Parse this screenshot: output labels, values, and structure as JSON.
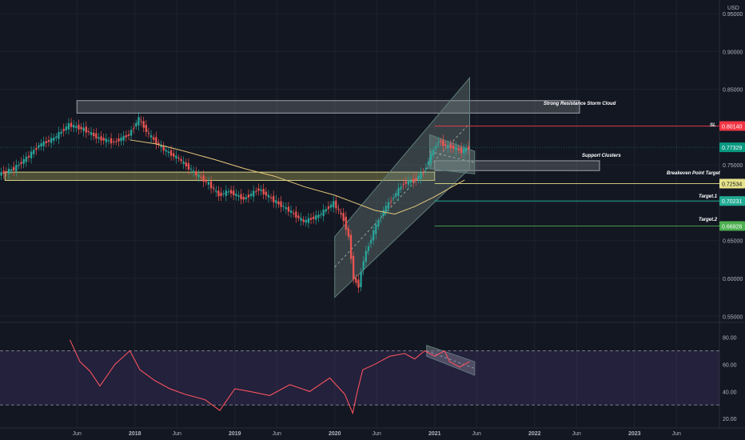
{
  "currency": "USD",
  "price_axis": {
    "labels": [
      "0.95000",
      "0.90000",
      "0.85000",
      "0.80000",
      "0.75000",
      "0.70000",
      "0.65000",
      "0.60000",
      "0.55000"
    ],
    "values": [
      0.95,
      0.9,
      0.85,
      0.8,
      0.75,
      0.7,
      0.65,
      0.6,
      0.55
    ]
  },
  "rsi_axis": {
    "labels": [
      "80.00",
      "60.00",
      "40.00",
      "20.00"
    ],
    "values": [
      80,
      60,
      40,
      20
    ]
  },
  "time_axis": {
    "labels": [
      "Jun",
      "2018",
      "Jun",
      "2019",
      "Jun",
      "2020",
      "Jun",
      "2021",
      "Jun",
      "2022",
      "Jun",
      "2023",
      "Jun"
    ],
    "values": [
      2017.42,
      2018.0,
      2018.42,
      2019.0,
      2019.42,
      2020.0,
      2020.42,
      2021.0,
      2021.42,
      2022.0,
      2022.42,
      2023.0,
      2023.42
    ]
  },
  "price_tags": [
    {
      "id": "sl",
      "text": "0.80140",
      "value": 0.8014,
      "color": "#f23645"
    },
    {
      "id": "last",
      "text": "0.77329",
      "value": 0.77329,
      "color": "#089981"
    },
    {
      "id": "breakeven",
      "text": "0.72534",
      "value": 0.72534,
      "color": "#e6e28a"
    },
    {
      "id": "target1",
      "text": "0.70231",
      "value": 0.70231,
      "color": "#22ab94"
    },
    {
      "id": "target2",
      "text": "0.66928",
      "value": 0.66928,
      "color": "#4caf50"
    }
  ],
  "annotations": {
    "resistance": "Strong Resistance Storm Cloud",
    "support": "Support Clusters",
    "breakeven": "Breakeven Point Target",
    "sl": "SL",
    "target1": "Target.1",
    "target2": "Target.2"
  },
  "zones": [
    {
      "id": "resistance-zone",
      "t0": 2017.42,
      "t1": 2022.45,
      "p0": 0.8185,
      "p1": 0.835,
      "fill": "rgba(255,255,255,0.16)",
      "stroke": "#a0a3ab"
    },
    {
      "id": "support-zone",
      "t0": 2021.0,
      "t1": 2022.65,
      "p0": 0.7425,
      "p1": 0.7555,
      "fill": "rgba(255,255,255,0.16)",
      "stroke": "#a0a3ab"
    },
    {
      "id": "yellow-zone",
      "t0": 2016.7,
      "t1": 2021.0,
      "p0": 0.7295,
      "p1": 0.7405,
      "fill": "rgba(205,200,100,0.32)",
      "stroke": "#d8d38a"
    }
  ],
  "chart_data": {
    "type": "line",
    "x_range": [
      2016.65,
      2023.85
    ],
    "y_range": [
      0.545,
      0.968
    ],
    "rsi_range": [
      16,
      88
    ],
    "rsi_bands": [
      70,
      30
    ],
    "price": {
      "x": [
        2016.65,
        2016.8,
        2016.95,
        2017.05,
        2017.2,
        2017.35,
        2017.5,
        2017.65,
        2017.8,
        2017.95,
        2018.05,
        2018.15,
        2018.3,
        2018.45,
        2018.6,
        2018.75,
        2018.85,
        2018.95,
        2019.1,
        2019.25,
        2019.4,
        2019.55,
        2019.7,
        2019.85,
        2020.0,
        2020.1,
        2020.15,
        2020.2,
        2020.25,
        2020.3,
        2020.4,
        2020.5,
        2020.6,
        2020.7,
        2020.8,
        2020.9,
        2021.0,
        2021.05,
        2021.12,
        2021.2,
        2021.28,
        2021.35
      ],
      "close": [
        0.738,
        0.745,
        0.762,
        0.776,
        0.785,
        0.803,
        0.797,
        0.785,
        0.78,
        0.79,
        0.811,
        0.79,
        0.77,
        0.758,
        0.74,
        0.725,
        0.71,
        0.715,
        0.705,
        0.718,
        0.703,
        0.69,
        0.675,
        0.683,
        0.7,
        0.678,
        0.655,
        0.6,
        0.59,
        0.625,
        0.662,
        0.69,
        0.708,
        0.726,
        0.729,
        0.741,
        0.77,
        0.782,
        0.775,
        0.773,
        0.768,
        0.773
      ]
    },
    "ma": {
      "x": [
        2017.95,
        2018.2,
        2018.5,
        2018.8,
        2019.1,
        2019.4,
        2019.7,
        2020.0,
        2020.2,
        2020.4,
        2020.6,
        2020.8,
        2021.0,
        2021.2,
        2021.3
      ],
      "y": [
        0.783,
        0.778,
        0.768,
        0.757,
        0.745,
        0.735,
        0.721,
        0.71,
        0.7,
        0.69,
        0.685,
        0.695,
        0.708,
        0.723,
        0.73
      ]
    },
    "rsi": {
      "x": [
        2017.35,
        2017.45,
        2017.55,
        2017.65,
        2017.8,
        2017.95,
        2018.05,
        2018.2,
        2018.35,
        2018.5,
        2018.7,
        2018.85,
        2019.0,
        2019.15,
        2019.35,
        2019.55,
        2019.75,
        2019.95,
        2020.1,
        2020.18,
        2020.22,
        2020.28,
        2020.4,
        2020.55,
        2020.7,
        2020.8,
        2020.9,
        2021.0,
        2021.1,
        2021.15,
        2021.25,
        2021.35
      ],
      "y": [
        78,
        62,
        55,
        44,
        60,
        70,
        56,
        48,
        42,
        38,
        34,
        26,
        42,
        40,
        37,
        45,
        40,
        50,
        38,
        24,
        38,
        56,
        60,
        66,
        68,
        64,
        70,
        66,
        70,
        62,
        58,
        62
      ]
    }
  },
  "drawings": {
    "up_channel": {
      "t0": 2020.0,
      "t1": 2021.35,
      "lower0": 0.575,
      "lower1": 0.745,
      "upper0": 0.655,
      "upper1": 0.865
    },
    "down_channel": {
      "t0": 2020.95,
      "t1": 2021.4,
      "lower0": 0.745,
      "lower1": 0.738,
      "upper0": 0.79,
      "upper1": 0.768
    },
    "rsi_channel": {
      "t0": 2020.92,
      "t1": 2021.4,
      "lower0": 66,
      "lower1": 52,
      "upper0": 74,
      "upper1": 62
    }
  }
}
